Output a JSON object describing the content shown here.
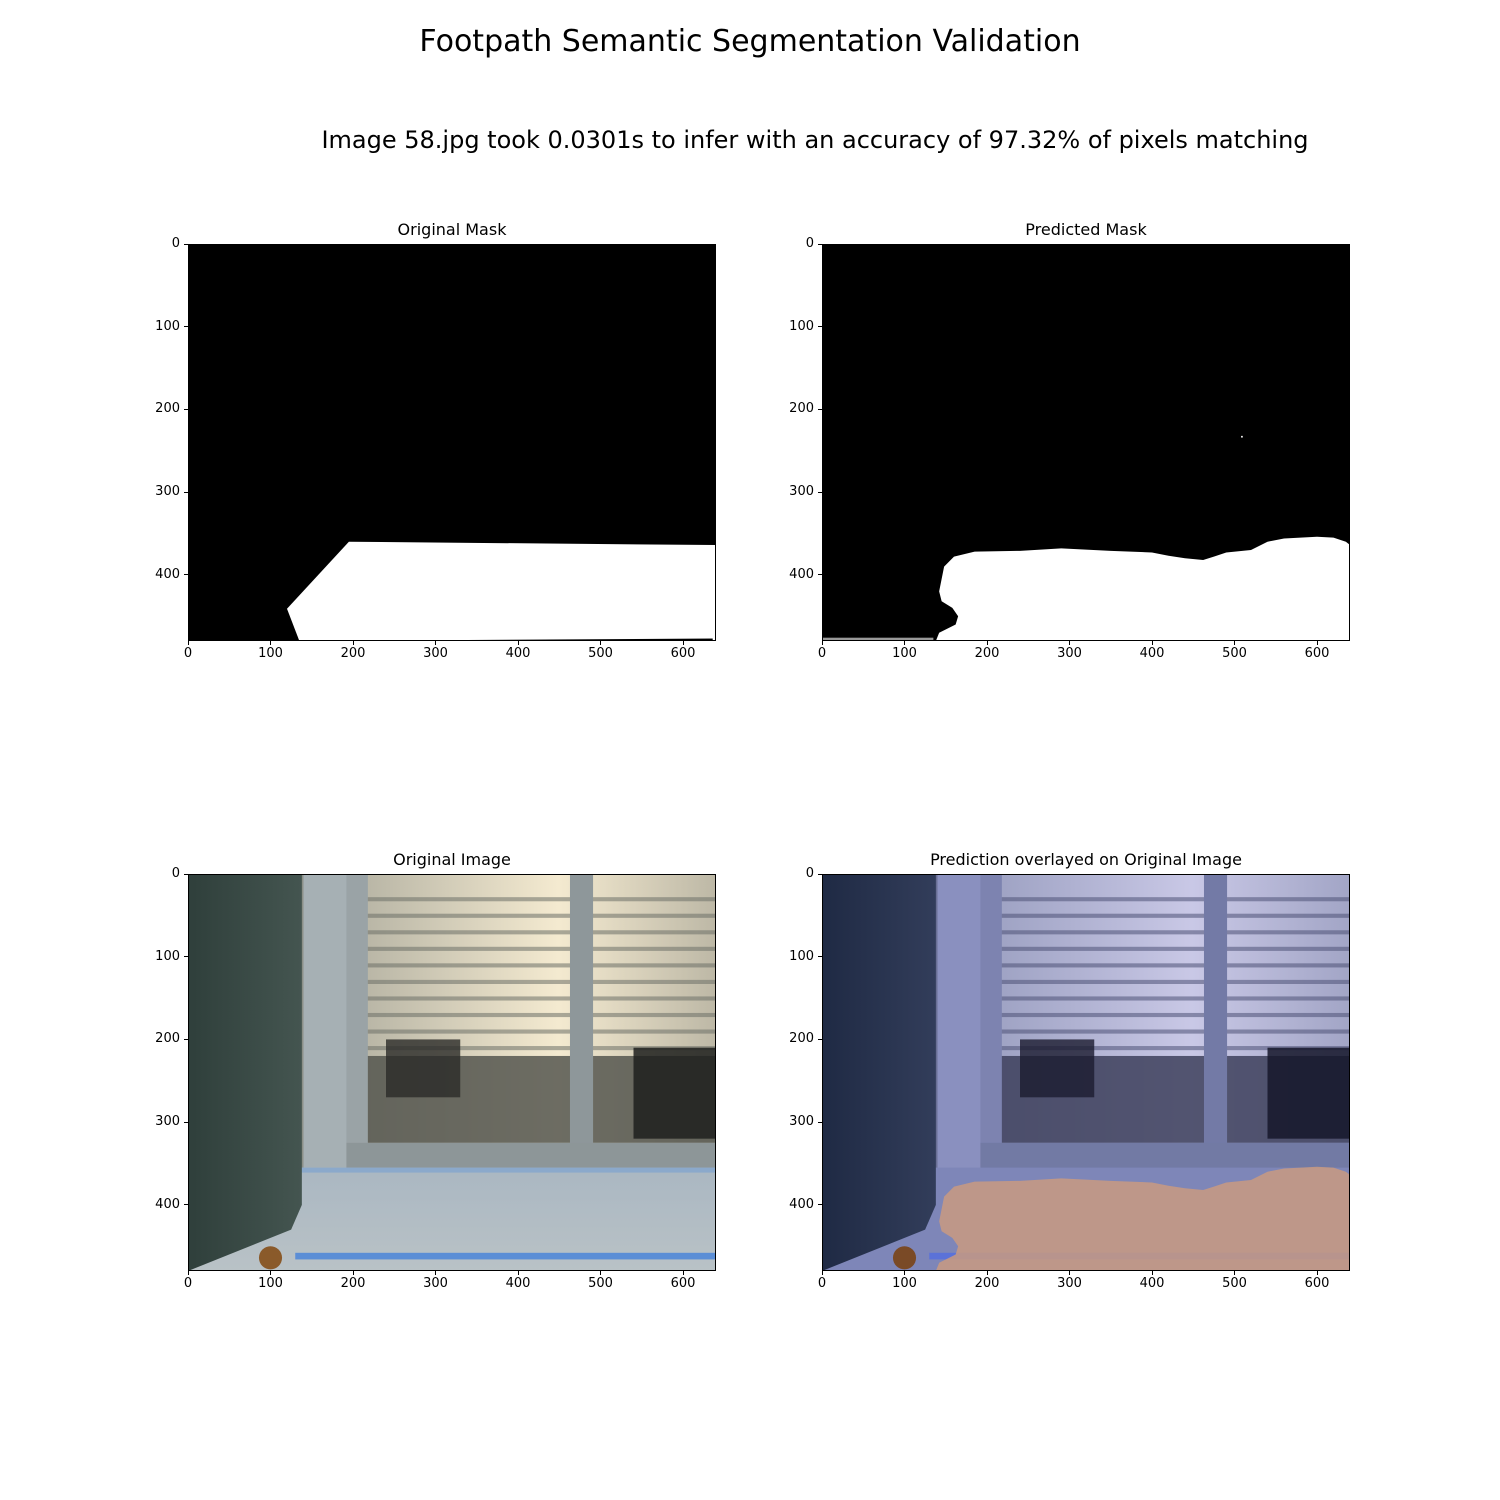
{
  "figure": {
    "suptitle": "Footpath Semantic Segmentation Validation",
    "subtitle": "Image 58.jpg took 0.0301s to infer with an accuracy of 97.32% of pixels matching"
  },
  "colors": {
    "background": "#000000",
    "foreground": "#ffffff",
    "overlay_tint": "#7b80c8",
    "prediction_overlay": "#d29a78"
  },
  "image_extent": {
    "width": 640,
    "height": 480
  },
  "panels": [
    {
      "id": "original-mask",
      "title": "Original Mask",
      "x_ticks": [
        "0",
        "100",
        "200",
        "300",
        "400",
        "500",
        "600"
      ],
      "y_ticks": [
        "0",
        "100",
        "200",
        "300",
        "400"
      ]
    },
    {
      "id": "predicted-mask",
      "title": "Predicted Mask",
      "x_ticks": [
        "0",
        "100",
        "200",
        "300",
        "400",
        "500",
        "600"
      ],
      "y_ticks": [
        "0",
        "100",
        "200",
        "300",
        "400"
      ]
    },
    {
      "id": "original-image",
      "title": "Original Image",
      "x_ticks": [
        "0",
        "100",
        "200",
        "300",
        "400",
        "500",
        "600"
      ],
      "y_ticks": [
        "0",
        "100",
        "200",
        "300",
        "400"
      ]
    },
    {
      "id": "prediction-overlay",
      "title": "Prediction overlayed on Original Image",
      "x_ticks": [
        "0",
        "100",
        "200",
        "300",
        "400",
        "500",
        "600"
      ],
      "y_ticks": [
        "0",
        "100",
        "200",
        "300",
        "400"
      ]
    }
  ]
}
